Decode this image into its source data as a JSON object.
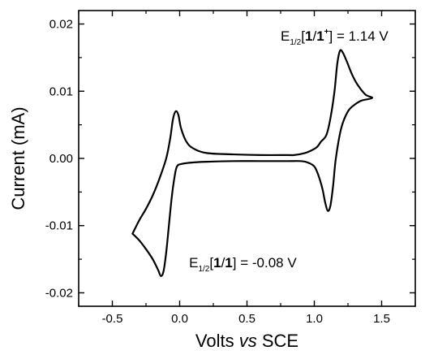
{
  "chart_data": {
    "type": "line",
    "title": "",
    "xlabel_parts": [
      "Volts ",
      "vs",
      " SCE"
    ],
    "ylabel": "Current (mA)",
    "xlim": [
      -0.75,
      1.75
    ],
    "ylim": [
      -0.022,
      0.022
    ],
    "x_ticks": [
      -0.5,
      0.0,
      0.5,
      1.0,
      1.5
    ],
    "x_tick_labels": [
      "-0.5",
      "0.0",
      "0.5",
      "1.0",
      "1.5"
    ],
    "y_ticks": [
      -0.02,
      -0.01,
      0.0,
      0.01,
      0.02
    ],
    "y_tick_labels": [
      "-0.02",
      "-0.01",
      "0.00",
      "0.01",
      "0.02"
    ],
    "grid": false,
    "series": [
      {
        "points": [
          [
            -0.35,
            -0.0112
          ],
          [
            -0.3,
            -0.0122
          ],
          [
            -0.25,
            -0.0135
          ],
          [
            -0.2,
            -0.015
          ],
          [
            -0.16,
            -0.0166
          ],
          [
            -0.14,
            -0.0175
          ],
          [
            -0.12,
            -0.0168
          ],
          [
            -0.1,
            -0.014
          ],
          [
            -0.08,
            -0.01
          ],
          [
            -0.06,
            -0.006
          ],
          [
            -0.04,
            -0.003
          ],
          [
            -0.02,
            -0.0012
          ],
          [
            0.02,
            -0.0008
          ],
          [
            0.1,
            -0.0006
          ],
          [
            0.2,
            -0.0005
          ],
          [
            0.4,
            -0.0004
          ],
          [
            0.6,
            -0.0004
          ],
          [
            0.8,
            -0.0004
          ],
          [
            0.9,
            -0.0004
          ],
          [
            0.95,
            -0.0006
          ],
          [
            1.0,
            -0.0012
          ],
          [
            1.03,
            -0.0025
          ],
          [
            1.06,
            -0.0045
          ],
          [
            1.08,
            -0.0065
          ],
          [
            1.1,
            -0.0078
          ],
          [
            1.12,
            -0.007
          ],
          [
            1.14,
            -0.004
          ],
          [
            1.16,
            0.0
          ],
          [
            1.2,
            0.0045
          ],
          [
            1.25,
            0.007
          ],
          [
            1.3,
            0.008
          ],
          [
            1.35,
            0.0086
          ],
          [
            1.43,
            0.009
          ],
          [
            1.38,
            0.0095
          ],
          [
            1.32,
            0.011
          ],
          [
            1.28,
            0.0125
          ],
          [
            1.24,
            0.0145
          ],
          [
            1.21,
            0.0158
          ],
          [
            1.19,
            0.016
          ],
          [
            1.17,
            0.014
          ],
          [
            1.15,
            0.01
          ],
          [
            1.12,
            0.006
          ],
          [
            1.09,
            0.0035
          ],
          [
            1.05,
            0.0025
          ],
          [
            1.02,
            0.0017
          ],
          [
            0.98,
            0.0012
          ],
          [
            0.93,
            0.0008
          ],
          [
            0.85,
            0.0005
          ],
          [
            0.8,
            0.0005
          ],
          [
            0.6,
            0.0005
          ],
          [
            0.4,
            0.0006
          ],
          [
            0.2,
            0.0008
          ],
          [
            0.1,
            0.0015
          ],
          [
            0.05,
            0.0025
          ],
          [
            0.01,
            0.0045
          ],
          [
            -0.01,
            0.0065
          ],
          [
            -0.03,
            0.007
          ],
          [
            -0.05,
            0.0058
          ],
          [
            -0.07,
            0.003
          ],
          [
            -0.1,
            0.0
          ],
          [
            -0.15,
            -0.003
          ],
          [
            -0.2,
            -0.0055
          ],
          [
            -0.25,
            -0.0075
          ],
          [
            -0.3,
            -0.0092
          ],
          [
            -0.35,
            -0.0112
          ]
        ],
        "color": "#000000"
      }
    ],
    "annotations": [
      {
        "id": "upper",
        "main": "E",
        "sub": "1/2",
        "open": "[",
        "bold_a": "1",
        "slash": "/",
        "bold_b": "1",
        "sup": "+",
        "close": "] = 1.14 V",
        "x": 0.75,
        "y": 0.0175
      },
      {
        "id": "lower",
        "main": "E",
        "sub": "1/2",
        "open": "[",
        "bold_a": "1",
        "slash": "/",
        "bold_b": "1",
        "sup": "",
        "close": "] = -0.08 V",
        "x": 0.07,
        "y": -0.0162
      }
    ]
  }
}
